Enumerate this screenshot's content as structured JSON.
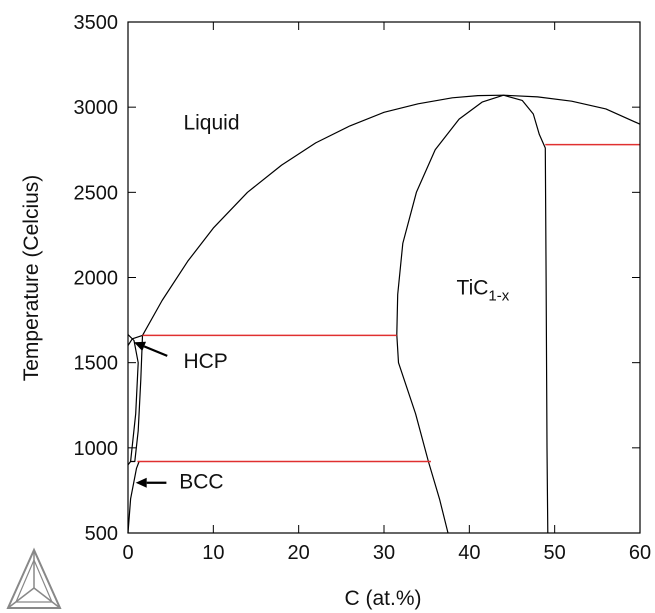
{
  "chart_data": {
    "type": "line",
    "title": "",
    "xlabel": "C (at.%)",
    "ylabel": "Temperature (Celcius)",
    "xlim": [
      0,
      60
    ],
    "ylim": [
      500,
      3500
    ],
    "xticks": [
      0,
      10,
      20,
      30,
      40,
      50,
      60
    ],
    "yticks": [
      500,
      1000,
      1500,
      2000,
      2500,
      3000,
      3500
    ],
    "grid": false,
    "legend": "none",
    "colors": {
      "boundary": "#000000",
      "isotherm": "#e03030",
      "logo": "#888888"
    },
    "phase_labels": [
      {
        "id": "liquid",
        "text": "Liquid",
        "x": 6.5,
        "y": 2870
      },
      {
        "id": "tic",
        "text": "TiC",
        "subscript": "1-x",
        "x": 38.5,
        "y": 1900
      },
      {
        "id": "hcp",
        "text": "HCP",
        "x": 6.5,
        "y": 1470
      },
      {
        "id": "bcc",
        "text": "BCC",
        "x": 6.0,
        "y": 760
      }
    ],
    "arrows": [
      {
        "id": "hcp",
        "from": [
          4.6,
          1540
        ],
        "to": [
          0.7,
          1620
        ]
      },
      {
        "id": "bcc",
        "from": [
          4.5,
          795
        ],
        "to": [
          0.9,
          795
        ]
      }
    ],
    "series": [
      {
        "kind": "liquidus",
        "points": [
          [
            1.7,
            1660
          ],
          [
            4,
            1865
          ],
          [
            7,
            2095
          ],
          [
            10,
            2290
          ],
          [
            14,
            2500
          ],
          [
            18,
            2660
          ],
          [
            22,
            2790
          ],
          [
            26,
            2890
          ],
          [
            30,
            2970
          ],
          [
            34,
            3020
          ],
          [
            38,
            3055
          ],
          [
            41,
            3068
          ],
          [
            44,
            3070
          ],
          [
            48,
            3060
          ],
          [
            52,
            3035
          ],
          [
            56,
            2990
          ],
          [
            60,
            2900
          ]
        ]
      },
      {
        "kind": "tic-carbon-poor-boundary",
        "points": [
          [
            37.5,
            500
          ],
          [
            36.5,
            700
          ],
          [
            35.2,
            920
          ],
          [
            33.7,
            1200
          ],
          [
            31.7,
            1500
          ],
          [
            31.5,
            1665
          ],
          [
            31.6,
            1900
          ],
          [
            32.2,
            2200
          ],
          [
            33.8,
            2500
          ],
          [
            36,
            2750
          ],
          [
            38.8,
            2930
          ],
          [
            41.5,
            3030
          ],
          [
            44,
            3070
          ]
        ]
      },
      {
        "kind": "tic-carbon-rich-boundary",
        "points": [
          [
            44,
            3070
          ],
          [
            46.2,
            3040
          ],
          [
            47.5,
            2960
          ],
          [
            48.2,
            2840
          ],
          [
            48.9,
            2760
          ],
          [
            49.0,
            2000
          ],
          [
            49.1,
            1000
          ],
          [
            49.2,
            500
          ]
        ]
      },
      {
        "kind": "hcp-solvus",
        "points": [
          [
            0,
            1665
          ],
          [
            0.7,
            1630
          ],
          [
            1.2,
            1500
          ],
          [
            0.9,
            1200
          ],
          [
            0.3,
            920
          ]
        ]
      },
      {
        "kind": "hcp-solidus",
        "points": [
          [
            1.7,
            1660
          ],
          [
            1.5,
            1400
          ],
          [
            1.2,
            1100
          ],
          [
            0.8,
            920
          ],
          [
            0.3,
            920
          ],
          [
            0,
            900
          ]
        ]
      },
      {
        "kind": "bcc-boundary",
        "points": [
          [
            0,
            500
          ],
          [
            0.3,
            700
          ],
          [
            1,
            880
          ],
          [
            1.3,
            920
          ]
        ]
      },
      {
        "kind": "liquid-boundary-low",
        "points": [
          [
            0,
            1600
          ],
          [
            0.5,
            1640
          ],
          [
            1.7,
            1660
          ]
        ]
      }
    ],
    "isotherms": [
      {
        "id": "peritectic",
        "temperature": 1660,
        "x_from": 1.7,
        "x_to": 31.5
      },
      {
        "id": "eutectoid",
        "temperature": 920,
        "x_from": 1.1,
        "x_to": 35.5
      },
      {
        "id": "eutectic",
        "temperature": 2780,
        "x_from": 48.9,
        "x_to": 60
      }
    ]
  }
}
